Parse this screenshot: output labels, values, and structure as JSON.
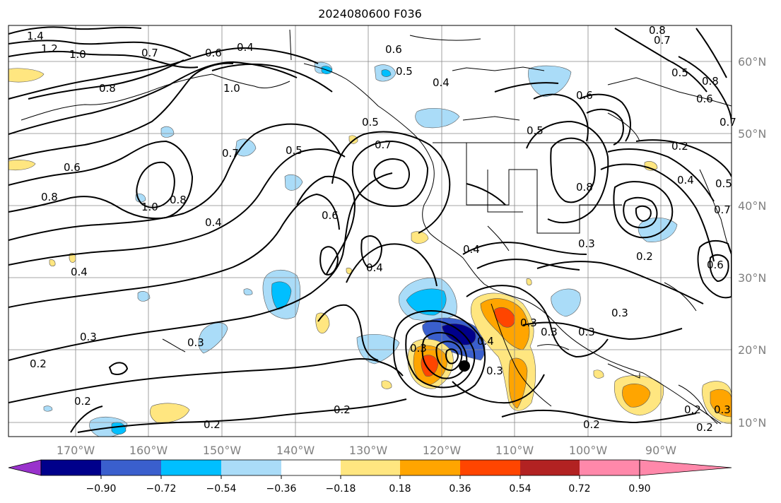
{
  "title": "2024080600 F036",
  "lat_labels": [
    "60°N",
    "50°N",
    "40°N",
    "30°N",
    "20°N",
    "10°N"
  ],
  "lon_labels": [
    "170°W",
    "160°W",
    "150°W",
    "140°W",
    "130°W",
    "120°W",
    "110°W",
    "100°W",
    "90°W"
  ],
  "colorbar": {
    "ticks": [
      "−0.90",
      "−0.72",
      "−0.54",
      "−0.36",
      "−0.18",
      "0.18",
      "0.36",
      "0.54",
      "0.72",
      "0.90"
    ],
    "colors": [
      "#9932cc",
      "#00008b",
      "#3a5fcd",
      "#00bfff",
      "#aadcf8",
      "#ffffff",
      "#ffe680",
      "#ffa500",
      "#ff4500",
      "#b22222",
      "#ff88aa"
    ]
  },
  "contour_labels": [
    "1.4",
    "1.2",
    "1.0",
    "0.8",
    "0.7",
    "0.6",
    "0.6",
    "0.4",
    "0.5",
    "0.5",
    "0.4",
    "0.8",
    "0.7",
    "1.0",
    "0.6",
    "0.7",
    "0.5",
    "0.5",
    "0.7",
    "0.6",
    "0.8",
    "1.0",
    "0.4",
    "0.6",
    "0.8",
    "0.4",
    "0.4",
    "0.4",
    "0.3",
    "0.3",
    "0.2",
    "0.2",
    "0.2",
    "0.2",
    "0.3",
    "0.3",
    "0.3",
    "0.3",
    "0.8",
    "0.2",
    "0.5",
    "0.6",
    "0.7",
    "0.5",
    "0.8",
    "0.7",
    "0.4",
    "0.2",
    "0.3",
    "0.2",
    "0.3",
    "0.3",
    "0.2",
    "0.6",
    "0.4",
    "0.3",
    "0.2"
  ],
  "fill_colors": {
    "light_blue": "#aadcf8",
    "mid_blue": "#00bfff",
    "royal_blue": "#3a5fcd",
    "navy": "#00008b",
    "light_yellow": "#ffe680",
    "orange": "#ffa500",
    "red_orange": "#ff4500"
  }
}
